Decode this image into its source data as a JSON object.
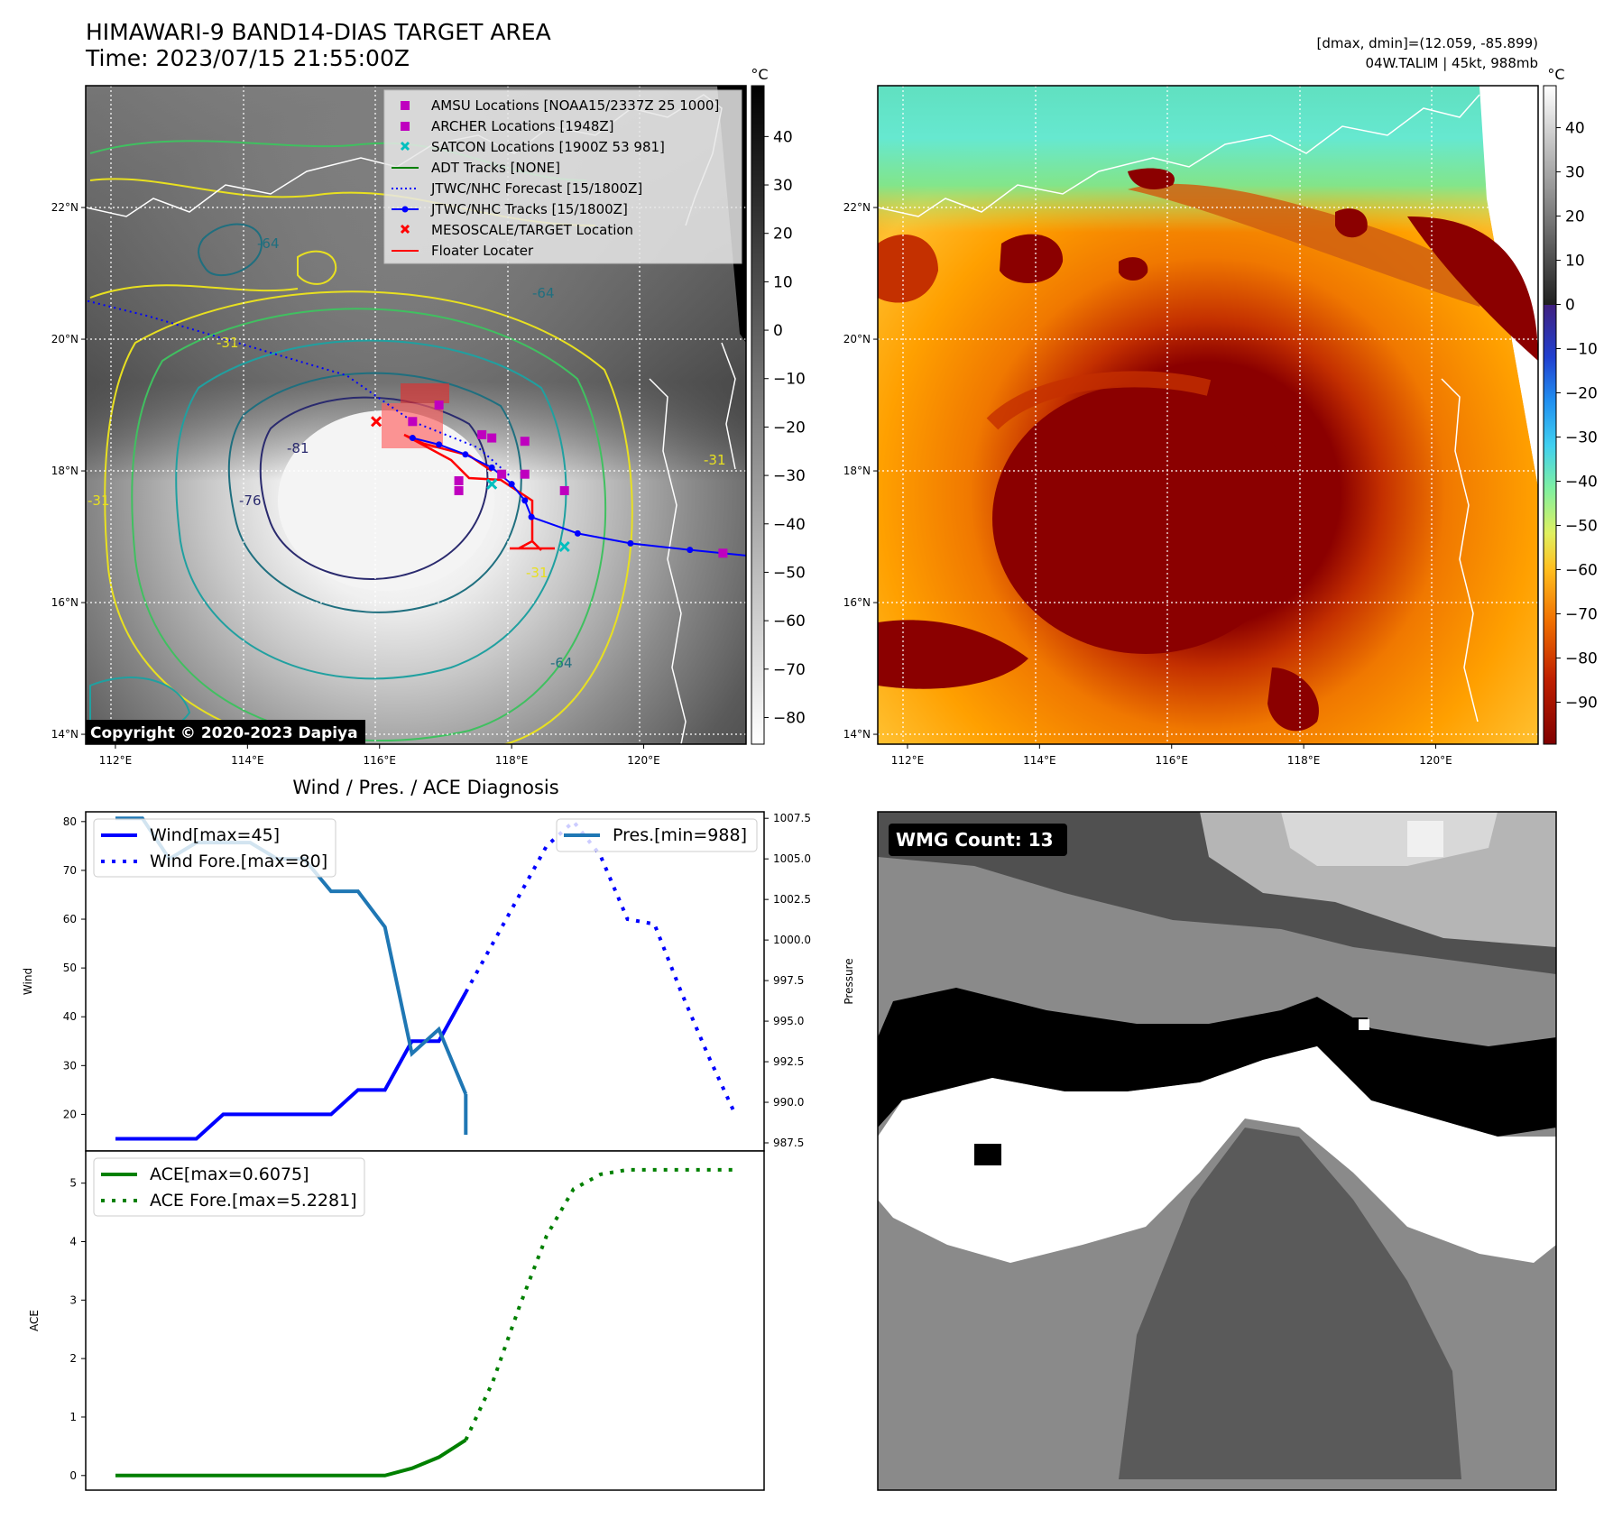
{
  "header": {
    "title_line1": "HIMAWARI-9 BAND14-DIAS TARGET AREA",
    "title_line2": "Time: 2023/07/15 21:55:00Z",
    "info_line1": "[dmax, dmin]=(12.059, -85.899)",
    "info_line2": "04W.TALIM | 45kt, 988mb"
  },
  "maps": {
    "lon_ticks": [
      "112°E",
      "114°E",
      "116°E",
      "118°E",
      "120°E"
    ],
    "lat_ticks": [
      "22°N",
      "20°N",
      "18°N",
      "16°N",
      "14°N"
    ],
    "copyright": "Copyright © 2020-2023 Dapiya",
    "colorbar_unit": "°C",
    "left_colorbar_ticks": [
      "40",
      "30",
      "20",
      "10",
      "0",
      "−10",
      "−20",
      "−30",
      "−40",
      "−50",
      "−60",
      "−70",
      "−80"
    ],
    "right_colorbar_ticks": [
      "40",
      "30",
      "20",
      "10",
      "0",
      "−10",
      "−20",
      "−30",
      "−40",
      "−50",
      "−60",
      "−70",
      "−80",
      "−90"
    ],
    "contour_labels": [
      "-31",
      "-64",
      "-76",
      "-81"
    ],
    "legend": [
      {
        "label": "AMSU Locations [NOAA15/2337Z 25 1000]",
        "symbol": "square",
        "color": "#bf00bf"
      },
      {
        "label": "ARCHER Locations [1948Z]",
        "symbol": "square",
        "color": "#bf00bf"
      },
      {
        "label": "SATCON Locations [1900Z 53 981]",
        "symbol": "x",
        "color": "#00bfbf"
      },
      {
        "label": "ADT Tracks [NONE]",
        "symbol": "line",
        "color": "#008000"
      },
      {
        "label": "JTWC/NHC Forecast [15/1800Z]",
        "symbol": "dotted",
        "color": "#0000ff"
      },
      {
        "label": "JTWC/NHC Tracks [15/1800Z]",
        "symbol": "line-dot",
        "color": "#0000ff"
      },
      {
        "label": "MESOSCALE/TARGET Location",
        "symbol": "x",
        "color": "#ff0000"
      },
      {
        "label": "Floater Locater",
        "symbol": "line",
        "color": "#ff0000"
      }
    ],
    "jtwc_track": [
      [
        116.5,
        18.5
      ],
      [
        116.9,
        18.4
      ],
      [
        117.3,
        18.25
      ],
      [
        117.7,
        18.05
      ],
      [
        118.0,
        17.8
      ],
      [
        118.2,
        17.55
      ],
      [
        118.3,
        17.3
      ],
      [
        119.0,
        17.05
      ],
      [
        119.8,
        16.9
      ],
      [
        120.7,
        16.8
      ],
      [
        121.7,
        16.7
      ]
    ],
    "jtwc_forecast": [
      [
        111.5,
        20.6
      ],
      [
        112.5,
        20.35
      ],
      [
        113.5,
        20.05
      ],
      [
        114.5,
        19.75
      ],
      [
        115.5,
        19.45
      ],
      [
        116.5,
        18.75
      ],
      [
        117.5,
        18.35
      ],
      [
        118.0,
        17.9
      ]
    ],
    "amsu_points": [
      [
        116.5,
        18.75
      ],
      [
        116.9,
        19.0
      ],
      [
        117.55,
        18.55
      ],
      [
        117.7,
        18.5
      ],
      [
        118.2,
        18.45
      ],
      [
        117.2,
        17.85
      ],
      [
        117.2,
        17.7
      ],
      [
        117.85,
        17.95
      ],
      [
        118.2,
        17.95
      ],
      [
        118.8,
        17.7
      ],
      [
        121.2,
        16.75
      ]
    ],
    "satcon_points": [
      [
        117.7,
        17.8
      ],
      [
        118.8,
        16.85
      ]
    ],
    "mesoscale_points": [
      [
        115.95,
        18.75
      ]
    ]
  },
  "wmg": {
    "label": "WMG Count: 13"
  },
  "chart_data": [
    {
      "type": "line",
      "title": "Wind / Pres. / ACE Diagnosis",
      "xlabel": "",
      "ylabel": "Wind",
      "ylabel_right": "Pressure",
      "yticks": [
        "80",
        "70",
        "60",
        "50",
        "40",
        "30",
        "20"
      ],
      "ylim": [
        12.5,
        82
      ],
      "yticks_right": [
        "1007.5",
        "1005.0",
        "1002.5",
        "1000.0",
        "997.5",
        "995.0",
        "992.5",
        "990.0",
        "987.5"
      ],
      "ylim_right": [
        987.0,
        1007.9
      ],
      "series": [
        {
          "name": "Wind[max=45]",
          "style": "solid",
          "color": "#0000ff",
          "axis": "left",
          "x": [
            0,
            1,
            2,
            3,
            4,
            5,
            6,
            7,
            8,
            9,
            10,
            11,
            12,
            13
          ],
          "y": [
            15,
            15,
            15,
            15,
            20,
            20,
            20,
            20,
            20,
            25,
            25,
            35,
            35,
            45
          ]
        },
        {
          "name": "Wind Fore.[max=80]",
          "style": "dotted",
          "color": "#0000ff",
          "axis": "left",
          "x": [
            13,
            14,
            15,
            16,
            17,
            18,
            19,
            20,
            21,
            22,
            23
          ],
          "y": [
            45,
            55,
            65,
            75,
            80,
            73,
            60,
            59,
            45,
            32,
            20
          ]
        },
        {
          "name": "Pres.[min=988]",
          "style": "solid",
          "color": "#1f77b4",
          "axis": "right",
          "x": [
            0,
            1,
            2,
            3,
            4,
            5,
            6,
            7,
            8,
            9,
            10,
            11,
            12,
            13
          ],
          "y": [
            1007.5,
            1007.5,
            1005,
            1006,
            1006,
            1006,
            1005,
            1005,
            1003,
            1003,
            1000.8,
            993,
            994.5,
            990.5
          ]
        },
        {
          "name": "",
          "style": "solid",
          "color": "#1f77b4",
          "axis": "right",
          "x": [
            13
          ],
          "y": [
            988
          ]
        }
      ],
      "legend_left": "top-left",
      "legend_right": "top-right"
    },
    {
      "type": "line",
      "title": "",
      "xlabel": "",
      "ylabel": "ACE",
      "yticks": [
        "5",
        "4",
        "3",
        "2",
        "1",
        "0"
      ],
      "ylim": [
        -0.25,
        5.55
      ],
      "series": [
        {
          "name": "ACE[max=0.6075]",
          "style": "solid",
          "color": "#008000",
          "x": [
            0,
            1,
            2,
            3,
            4,
            5,
            6,
            7,
            8,
            9,
            10,
            11,
            12,
            13
          ],
          "y": [
            0,
            0,
            0,
            0,
            0,
            0,
            0,
            0,
            0,
            0,
            0,
            0.1225,
            0.3125,
            0.6075
          ]
        },
        {
          "name": "ACE Fore.[max=5.2281]",
          "style": "dotted",
          "color": "#008000",
          "x": [
            13,
            14,
            15,
            16,
            17,
            18,
            19,
            20,
            21,
            22,
            23
          ],
          "y": [
            0.6075,
            1.6,
            2.9,
            4.1,
            4.9,
            5.15,
            5.228,
            5.228,
            5.228,
            5.228,
            5.228
          ]
        }
      ],
      "legend": "top-left"
    }
  ]
}
